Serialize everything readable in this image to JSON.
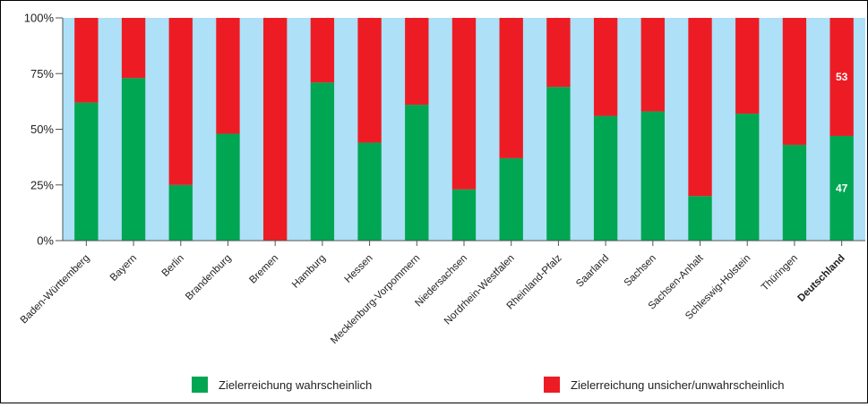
{
  "chart_data": {
    "type": "bar",
    "stacked": true,
    "orientation": "vertical",
    "categories": [
      "Baden-Württemberg",
      "Bayern",
      "Berlin",
      "Brandenburg",
      "Bremen",
      "Hamburg",
      "Hessen",
      "Mecklenburg-Vorpommern",
      "Niedersachsen",
      "Nordrhein-Westfalen",
      "Rheinland-Pfalz",
      "Saarland",
      "Sachsen",
      "Sachsen-Anhalt",
      "Schleswig-Holstein",
      "Thüringen",
      "Deutschland"
    ],
    "highlight_category": "Deutschland",
    "series": [
      {
        "name": "Zielerreichung wahrscheinlich",
        "color": "#00a651",
        "values": [
          62,
          73,
          25,
          48,
          0,
          71,
          44,
          61,
          23,
          37,
          69,
          56,
          58,
          20,
          57,
          43,
          47
        ]
      },
      {
        "name": "Zielerreichung unsicher/unwahrscheinlich",
        "color": "#ed1c24",
        "values": [
          38,
          27,
          75,
          52,
          100,
          29,
          56,
          39,
          77,
          63,
          31,
          44,
          42,
          80,
          43,
          57,
          53
        ]
      }
    ],
    "data_labels": [
      {
        "category": "Deutschland",
        "series": "Zielerreichung wahrscheinlich",
        "text": "47"
      },
      {
        "category": "Deutschland",
        "series": "Zielerreichung unsicher/unwahrscheinlich",
        "text": "53"
      }
    ],
    "ylim": [
      0,
      100
    ],
    "yticks": [
      "0%",
      "25%",
      "50%",
      "75%",
      "100%"
    ],
    "ytick_values": [
      0,
      25,
      50,
      75,
      100
    ],
    "background_color": "#aee0f7",
    "legend_position": "bottom",
    "grid": false
  }
}
